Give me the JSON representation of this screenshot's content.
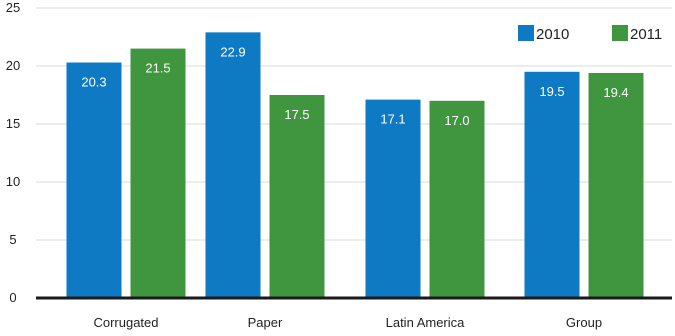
{
  "chart_data": {
    "type": "bar",
    "categories": [
      "Corrugated",
      "Paper",
      "Latin America",
      "Group"
    ],
    "series": [
      {
        "name": "2010",
        "color": "#0e7ac4",
        "values": [
          20.3,
          22.9,
          17.1,
          19.5
        ]
      },
      {
        "name": "2011",
        "color": "#3f963e",
        "values": [
          21.5,
          17.5,
          17.0,
          19.4
        ]
      }
    ],
    "data_labels": [
      [
        "20.3",
        "22.9",
        "17.1",
        "19.5"
      ],
      [
        "21.5",
        "17.5",
        "17.0",
        "19.4"
      ]
    ],
    "ylim": [
      0,
      25
    ],
    "yticks": [
      0,
      5,
      10,
      15,
      20,
      25
    ],
    "grid": true,
    "legend": "top-right"
  }
}
